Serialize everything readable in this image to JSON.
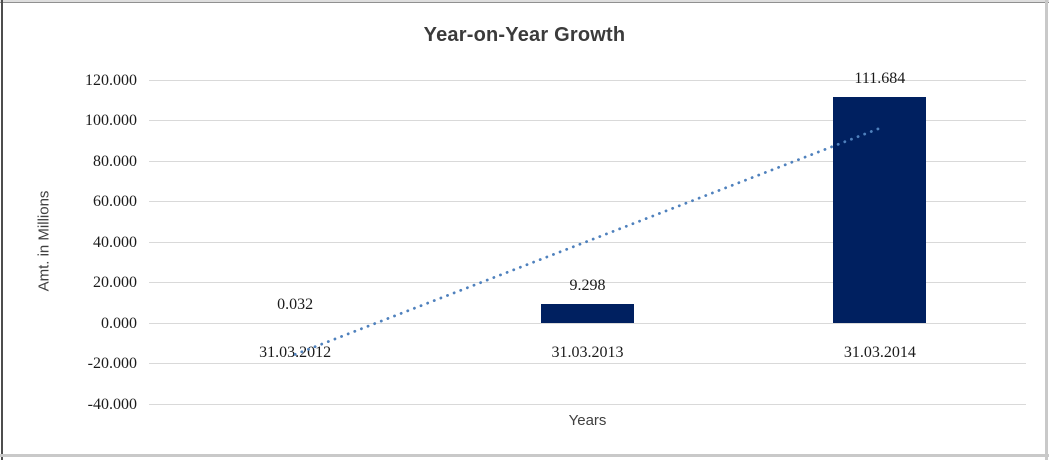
{
  "chart_data": {
    "type": "bar",
    "title": "Year-on-Year Growth",
    "xlabel": "Years",
    "ylabel": "Amt. in Millions",
    "categories": [
      "31.03.2012",
      "31.03.2013",
      "31.03.2014"
    ],
    "values": [
      0.032,
      9.298,
      111.684
    ],
    "data_labels": [
      "0.032",
      "9.298",
      "111.684"
    ],
    "ylim": [
      -40,
      120
    ],
    "y_tick_step": 20,
    "y_tick_labels": [
      "120.000",
      "100.000",
      "80.000",
      "60.000",
      "40.000",
      "20.000",
      "0.000",
      "-20.000",
      "-40.000"
    ],
    "grid": true,
    "legend": "none",
    "trendline": {
      "type": "linear",
      "style": "dotted",
      "start_value": -15.5,
      "end_value": 96.2
    },
    "colors": {
      "bar": "#002060",
      "trendline": "#4f81bd",
      "gridline": "#d9d9d9",
      "label_text": "#1a1a1a",
      "title_text": "#3b3b3b",
      "axis_title_text": "#404040"
    }
  }
}
